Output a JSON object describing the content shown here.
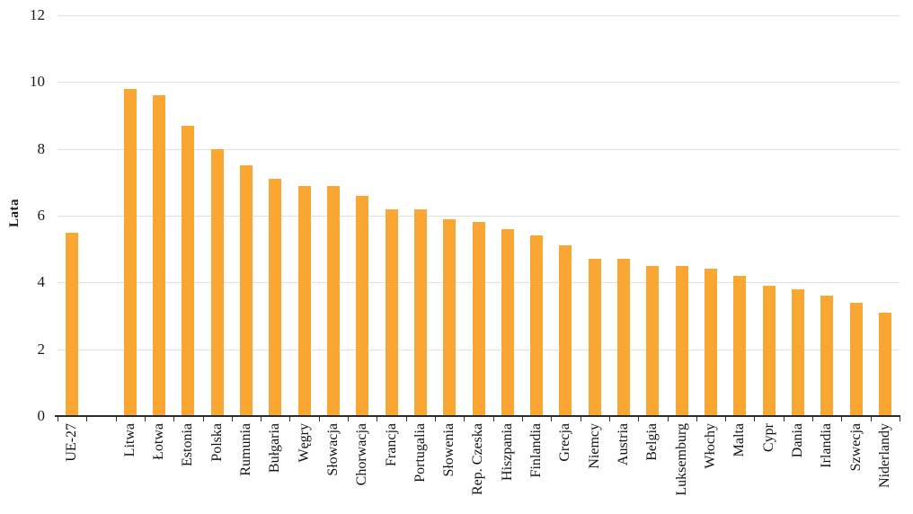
{
  "chart_data": {
    "type": "bar",
    "title": "",
    "xlabel": "",
    "ylabel": "Lata",
    "ylim": [
      0,
      12
    ],
    "yticks": [
      0,
      2,
      4,
      6,
      8,
      10,
      12
    ],
    "grid": true,
    "legend": false,
    "bar_color": "#F9A632",
    "grid_color": "#E0E0E0",
    "axis_color": "#2B2B2B",
    "categories": [
      "UE-27",
      "",
      "Litwa",
      "Łotwa",
      "Estonia",
      "Polska",
      "Rumunia",
      "Bułgaria",
      "Węgry",
      "Słowacja",
      "Chorwacja",
      "Francja",
      "Portugalia",
      "Słowenia",
      "Rep. Czeska",
      "Hiszpania",
      "Finlandia",
      "Grecja",
      "Niemcy",
      "Austria",
      "Belgia",
      "Luksemburg",
      "Włochy",
      "Malta",
      "Cypr",
      "Dania",
      "Irlandia",
      "Szwecja",
      "Niderlandy"
    ],
    "values": [
      5.5,
      null,
      9.8,
      9.6,
      8.7,
      8.0,
      7.5,
      7.1,
      6.9,
      6.9,
      6.6,
      6.2,
      6.2,
      5.9,
      5.8,
      5.6,
      5.4,
      5.1,
      4.7,
      4.7,
      4.5,
      4.5,
      4.4,
      4.2,
      3.9,
      3.8,
      3.6,
      3.4,
      3.1
    ]
  }
}
